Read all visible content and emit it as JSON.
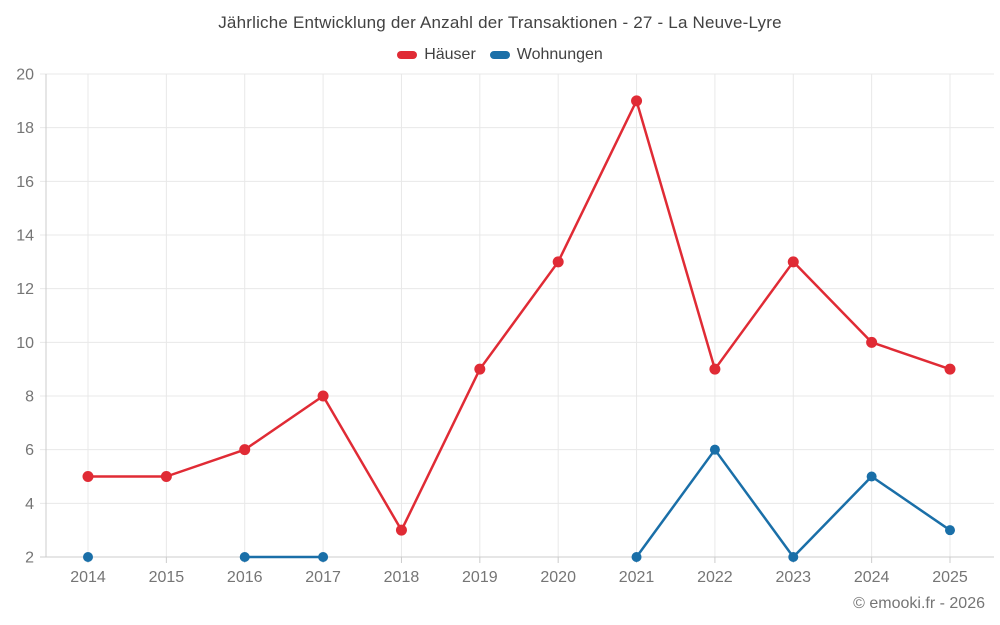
{
  "header": {
    "title": "Jährliche Entwicklung der Anzahl der Transaktionen - 27 - La Neuve-Lyre"
  },
  "footer": {
    "credit": "© emooki.fr - 2026"
  },
  "colors": {
    "hauser_red": "#e02b35",
    "wohnungen_blue": "#1a6fa8",
    "grid_line": "#e8e8e8",
    "axis_line": "#cccccc",
    "tick_label": "#757575",
    "title_text": "#424242"
  },
  "chart_data": {
    "type": "line",
    "title": "Jährliche Entwicklung der Anzahl der Transaktionen - 27 - La Neuve-Lyre",
    "categories": [
      "2014",
      "2015",
      "2016",
      "2017",
      "2018",
      "2019",
      "2020",
      "2021",
      "2022",
      "2023",
      "2024",
      "2025"
    ],
    "series": [
      {
        "name": "Häuser",
        "color": "#e02b35",
        "values": [
          5,
          5,
          6,
          8,
          3,
          9,
          13,
          19,
          9,
          13,
          10,
          9
        ]
      },
      {
        "name": "Wohnungen",
        "color": "#1a6fa8",
        "values": [
          2,
          null,
          2,
          2,
          null,
          null,
          null,
          2,
          6,
          2,
          5,
          3
        ]
      }
    ],
    "xlabel": "",
    "ylabel": "",
    "ylim": [
      2,
      20
    ],
    "y_ticks": [
      2,
      4,
      6,
      8,
      10,
      12,
      14,
      16,
      18,
      20
    ],
    "grid": true,
    "legend_position": "top",
    "markers": true
  }
}
